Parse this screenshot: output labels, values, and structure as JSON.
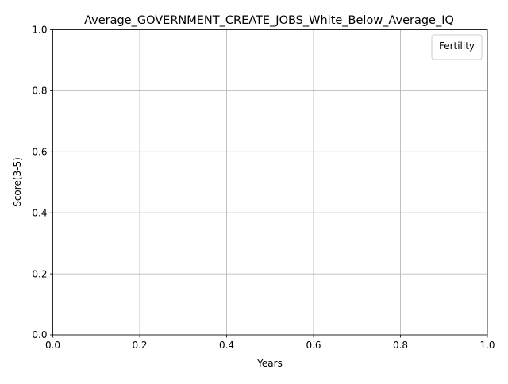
{
  "chart_data": {
    "type": "line",
    "title": "Average_GOVERNMENT_CREATE_JOBS_White_Below_Average_IQ",
    "xlabel": "Years",
    "ylabel": "Score(3-5)",
    "xlim": [
      0.0,
      1.0
    ],
    "ylim": [
      0.0,
      1.0
    ],
    "xticks": [
      "0.0",
      "0.2",
      "0.4",
      "0.6",
      "0.8",
      "1.0"
    ],
    "yticks": [
      "0.0",
      "0.2",
      "0.4",
      "0.6",
      "0.8",
      "1.0"
    ],
    "grid": true,
    "legend": {
      "title": "Fertility",
      "placement": "top-right",
      "entries": []
    },
    "series": []
  }
}
